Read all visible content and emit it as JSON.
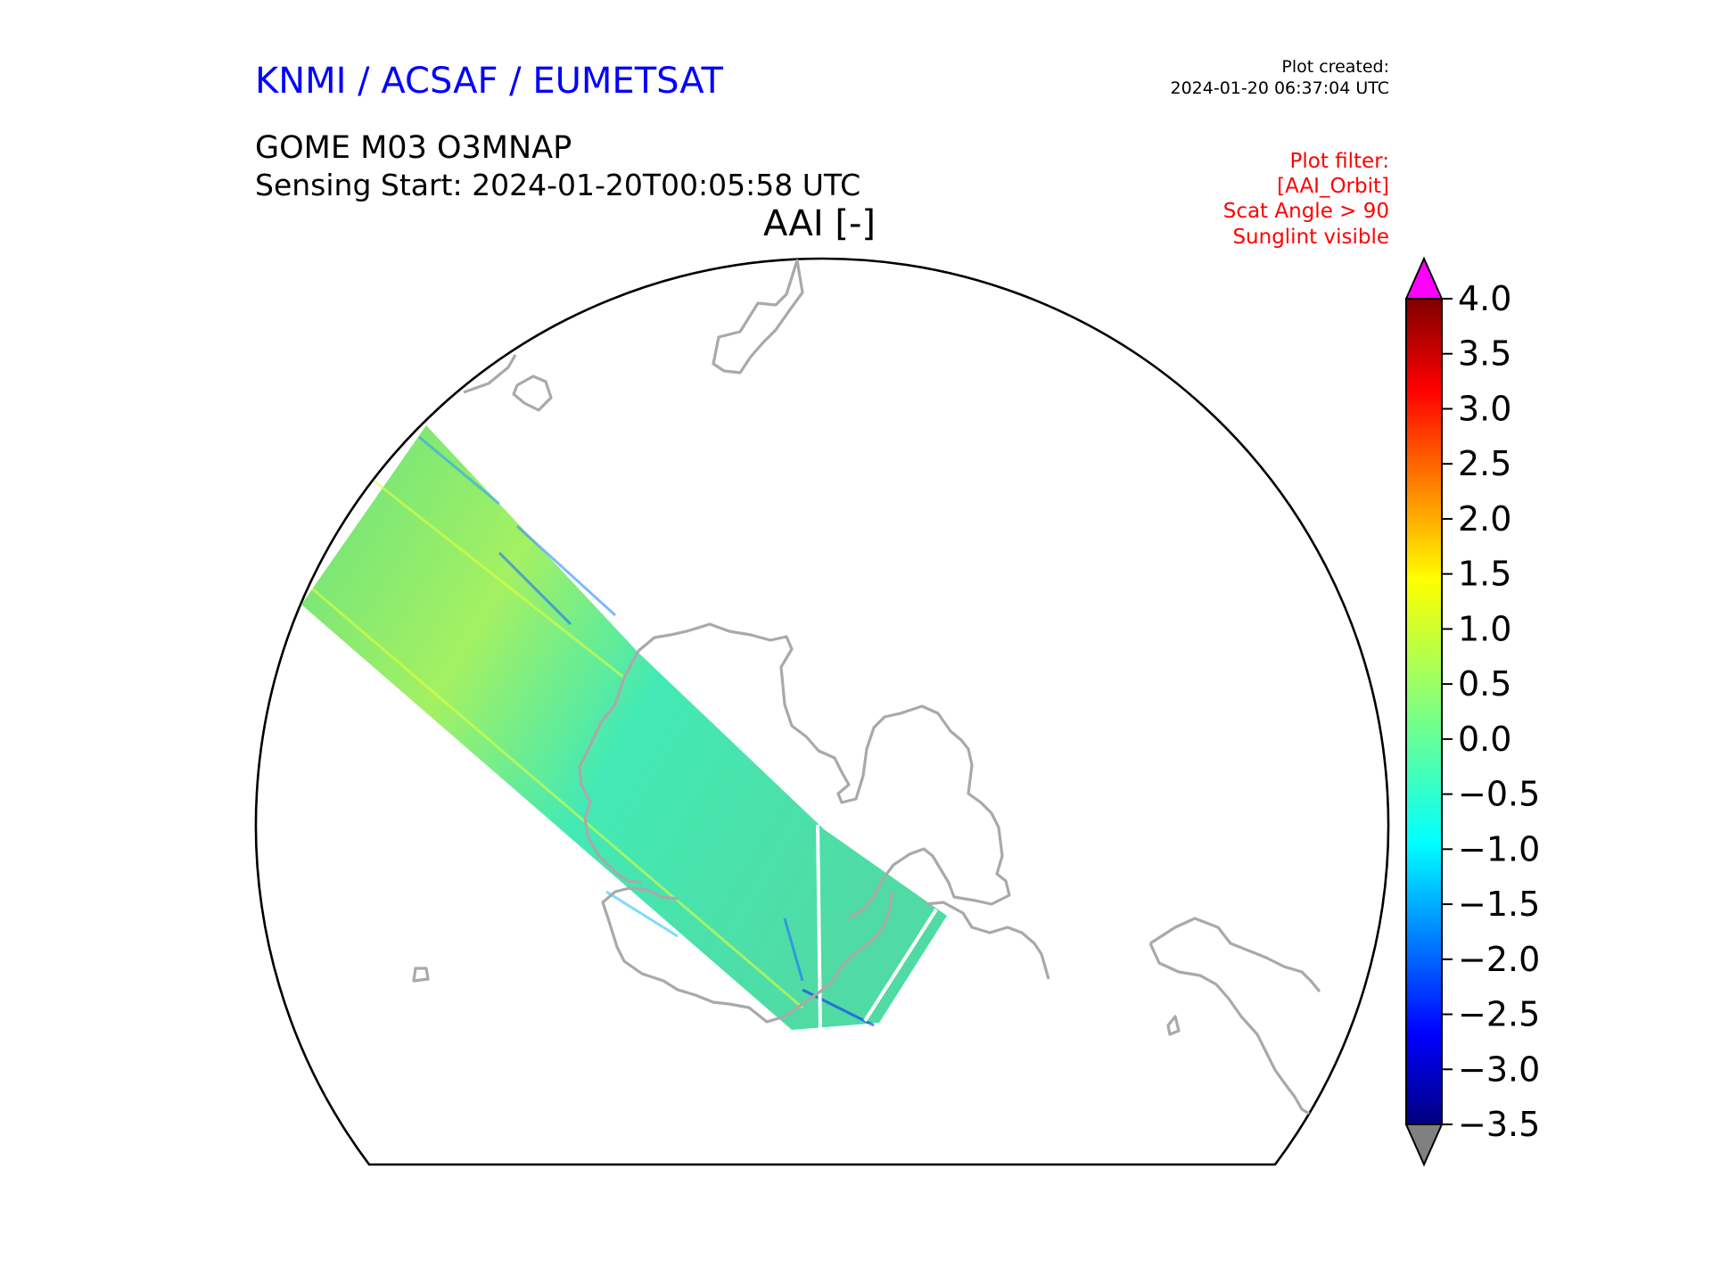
{
  "header": {
    "organization": "KNMI / ACSAF / EUMETSAT",
    "plot_created_label": "Plot created:",
    "plot_created_value": "2024-01-20 06:37:04 UTC",
    "product": "GOME M03 O3MNAP",
    "sensing_start": "Sensing Start: 2024-01-20T00:05:58 UTC",
    "variable_title": "AAI [-]"
  },
  "plot_filter": [
    "Plot filter:",
    "[AAI_Orbit]",
    "Scat Angle > 90",
    "Sunglint visible"
  ],
  "colors": {
    "organization": "#0000ff",
    "filter_text": "#ff0000",
    "coastline": "#a9a9a9",
    "over_extension": "#ff00ff",
    "under_extension": "#808080"
  },
  "colorbar": {
    "min": -3.5,
    "max": 4.0,
    "ticks": [
      "4.0",
      "3.5",
      "3.0",
      "2.5",
      "2.0",
      "1.5",
      "1.0",
      "0.5",
      "0.0",
      "−0.5",
      "−1.0",
      "−1.5",
      "−2.0",
      "−2.5",
      "−3.0",
      "−3.5"
    ],
    "colormap": "jet"
  }
}
